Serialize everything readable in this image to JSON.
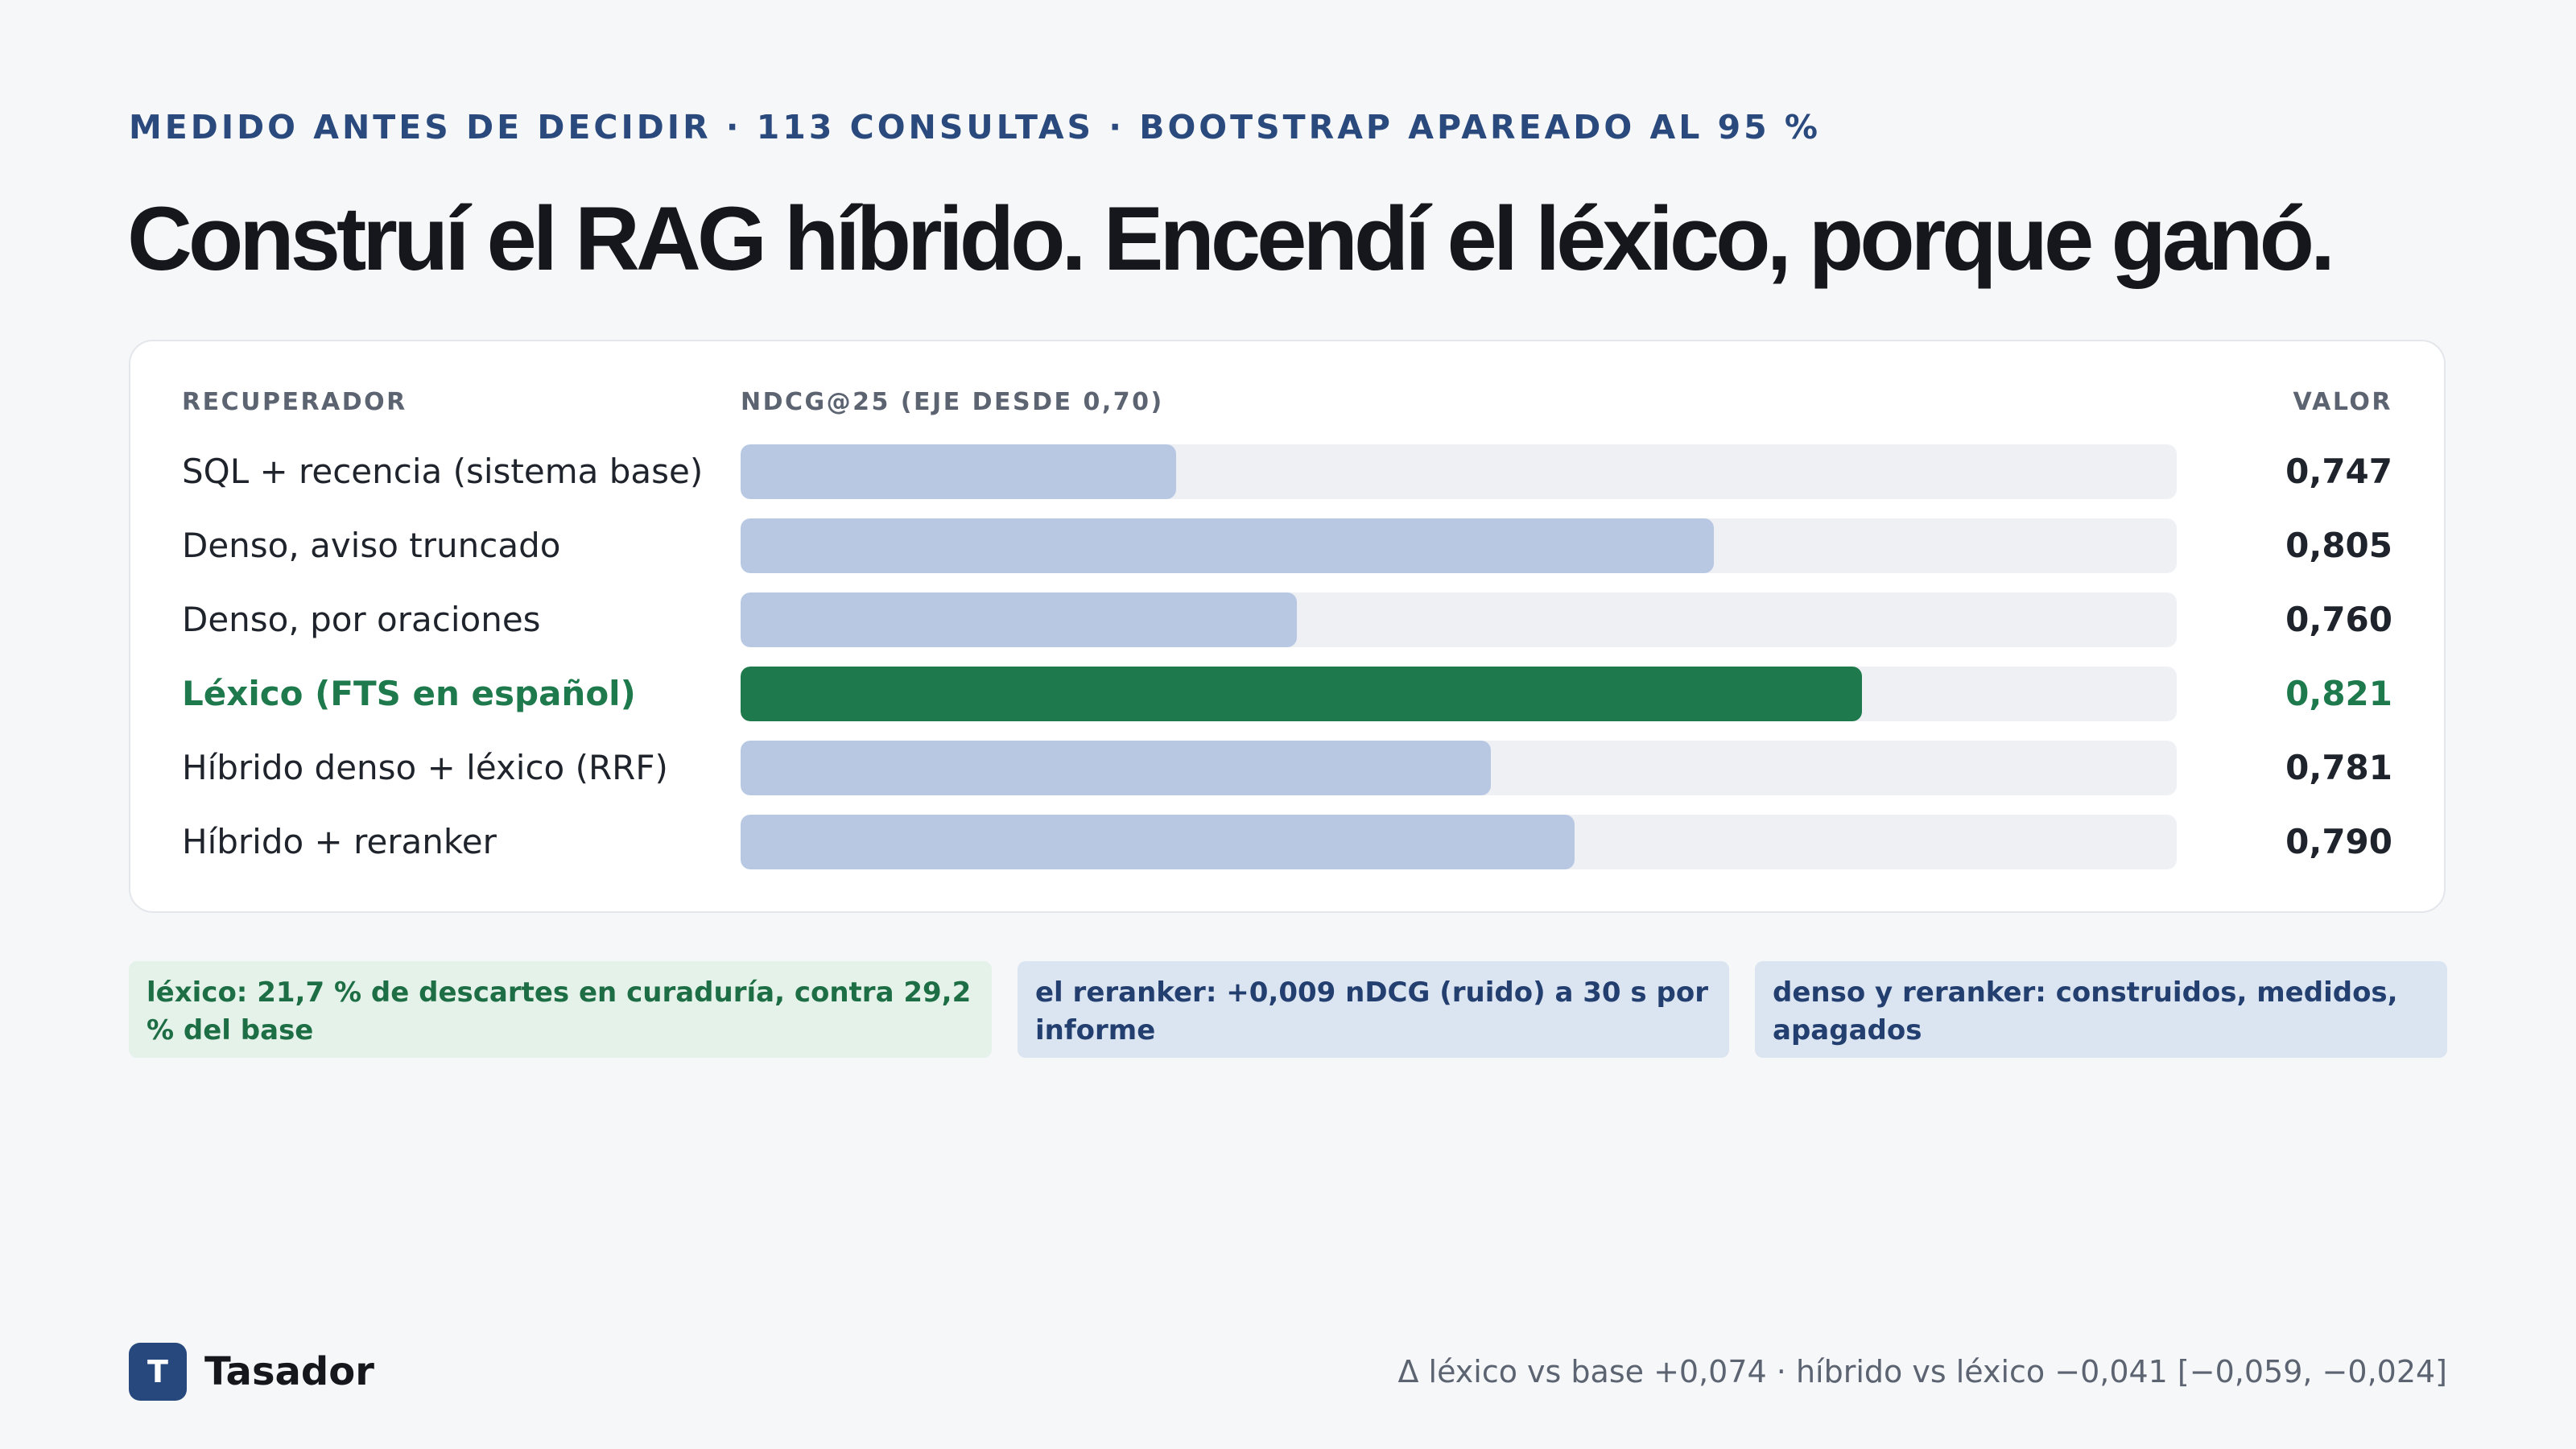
{
  "eyebrow": "MEDIDO ANTES DE DECIDIR · 113 CONSULTAS · BOOTSTRAP APAREADO AL 95 %",
  "headline": "Construí el RAG híbrido. Encendí el léxico, porque ganó.",
  "chart_data": {
    "type": "bar",
    "orientation": "horizontal",
    "columns": {
      "name": "RECUPERADOR",
      "axis": "NDCG@25 (EJE DESDE 0,70)",
      "value": "VALOR"
    },
    "xlim": [
      0.7,
      0.855
    ],
    "categories": [
      "SQL + recencia (sistema base)",
      "Denso, aviso truncado",
      "Denso, por oraciones",
      "Léxico (FTS en español)",
      "Híbrido denso + léxico (RRF)",
      "Híbrido + reranker"
    ],
    "values": [
      0.747,
      0.805,
      0.76,
      0.821,
      0.781,
      0.79
    ],
    "value_labels": [
      "0,747",
      "0,805",
      "0,760",
      "0,821",
      "0,781",
      "0,790"
    ],
    "highlight_index": 3,
    "colors": {
      "bar": "#b8c8e3",
      "highlight": "#1e7a4c",
      "track": "#eef0f4"
    }
  },
  "notes": [
    {
      "text": "léxico: 21,7 % de descartes en curaduría, contra 29,2 % del base",
      "tone": "green"
    },
    {
      "text": "el reranker: +0,009 nDCG (ruido) a 30 s por informe",
      "tone": "blue"
    },
    {
      "text": "denso y reranker: construidos, medidos, apagados",
      "tone": "blue"
    }
  ],
  "brand": {
    "mark": "T",
    "name": "Tasador"
  },
  "footnote": "Δ léxico vs base +0,074 · híbrido vs léxico −0,041 [−0,059, −0,024]"
}
